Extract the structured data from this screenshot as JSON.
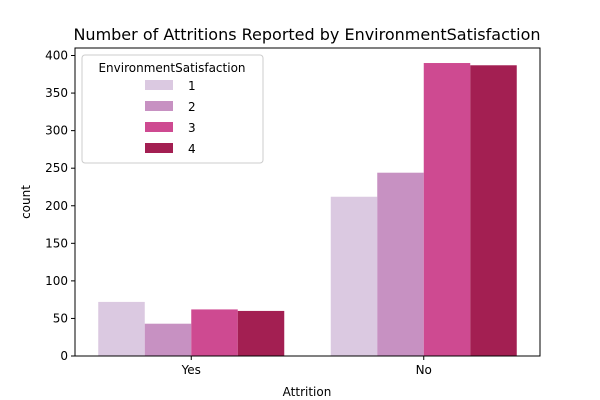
{
  "chart_data": {
    "type": "bar",
    "title": "Number of Attritions Reported by EnvironmentSatisfaction",
    "xlabel": "Attrition",
    "ylabel": "count",
    "categories": [
      "Yes",
      "No"
    ],
    "ylim": [
      0,
      410
    ],
    "yticks": [
      0,
      50,
      100,
      150,
      200,
      250,
      300,
      350,
      400
    ],
    "grid": false,
    "legend": {
      "title": "EnvironmentSatisfaction",
      "placement": "top-left"
    },
    "series": [
      {
        "name": "1",
        "values": [
          72,
          212
        ],
        "color": "#dbc9e1"
      },
      {
        "name": "2",
        "values": [
          43,
          244
        ],
        "color": "#c791c2"
      },
      {
        "name": "3",
        "values": [
          62,
          390
        ],
        "color": "#ce4a91"
      },
      {
        "name": "4",
        "values": [
          60,
          387
        ],
        "color": "#a31f52"
      }
    ]
  }
}
